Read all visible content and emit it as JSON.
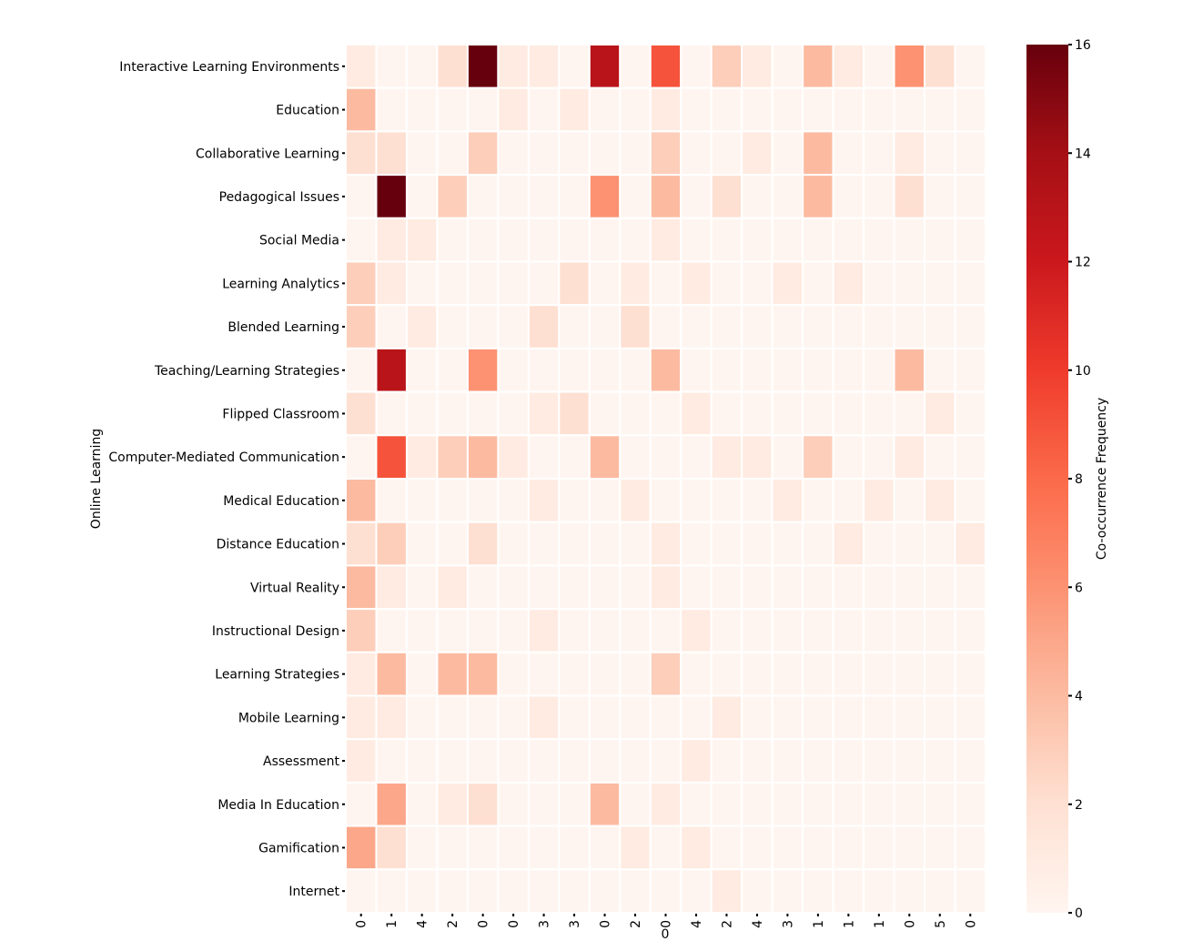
{
  "chart_data": {
    "type": "heatmap",
    "title": "",
    "ylabel": "Online Learning",
    "xlabel": "0",
    "colorbar_label": "Co-occurrence Frequency",
    "colormap": "Reds",
    "vmin": 0,
    "vmax": 16,
    "colorbar_ticks": [
      0,
      2,
      4,
      6,
      8,
      10,
      12,
      14,
      16
    ],
    "x_tick_labels": [
      "0",
      "1",
      "4",
      "2",
      "0",
      "0",
      "3",
      "3",
      "0",
      "2",
      "0",
      "4",
      "2",
      "4",
      "3",
      "1",
      "1",
      "1",
      "0",
      "5",
      "0"
    ],
    "y_tick_labels": [
      "Interactive Learning Environments",
      "Education",
      "Collaborative Learning",
      "Pedagogical Issues",
      "Social Media",
      "Learning Analytics",
      "Blended Learning",
      "Teaching/Learning Strategies",
      "Flipped Classroom",
      "Computer-Mediated Communication",
      "Medical Education",
      "Distance Education",
      "Virtual Reality",
      "Instructional Design",
      "Learning Strategies",
      "Mobile Learning",
      "Assessment",
      "Media In Education",
      "Gamification",
      "Internet"
    ],
    "values": [
      [
        1,
        0,
        0,
        2,
        16,
        1,
        1,
        0,
        13,
        0,
        9,
        0,
        3,
        1,
        0,
        4,
        1,
        0,
        6,
        2,
        0
      ],
      [
        4,
        0,
        0,
        0,
        0,
        1,
        0,
        1,
        0,
        0,
        1,
        0,
        0,
        0,
        0,
        0,
        0,
        0,
        0,
        0,
        0
      ],
      [
        2,
        2,
        0,
        0,
        3,
        0,
        0,
        0,
        0,
        0,
        3,
        0,
        0,
        1,
        0,
        4,
        0,
        0,
        1,
        0,
        0
      ],
      [
        0,
        16,
        0,
        3,
        0,
        0,
        0,
        0,
        6,
        0,
        4,
        0,
        2,
        0,
        0,
        4,
        0,
        0,
        2,
        0,
        0
      ],
      [
        0,
        1,
        1,
        0,
        0,
        0,
        0,
        0,
        0,
        0,
        1,
        0,
        0,
        0,
        0,
        0,
        0,
        0,
        0,
        0,
        0
      ],
      [
        3,
        1,
        0,
        0,
        0,
        0,
        0,
        2,
        0,
        1,
        0,
        1,
        0,
        0,
        1,
        0,
        1,
        0,
        0,
        0,
        0
      ],
      [
        3,
        0,
        1,
        0,
        0,
        0,
        2,
        0,
        0,
        2,
        0,
        0,
        0,
        0,
        0,
        0,
        0,
        0,
        0,
        0,
        0
      ],
      [
        0,
        13,
        0,
        0,
        6,
        0,
        0,
        0,
        0,
        0,
        4,
        0,
        0,
        0,
        0,
        0,
        0,
        0,
        4,
        0,
        0
      ],
      [
        2,
        0,
        0,
        0,
        0,
        0,
        1,
        2,
        0,
        0,
        0,
        1,
        0,
        0,
        0,
        0,
        0,
        0,
        0,
        1,
        0
      ],
      [
        0,
        9,
        1,
        3,
        4,
        1,
        0,
        0,
        4,
        0,
        0,
        0,
        1,
        1,
        0,
        3,
        0,
        0,
        1,
        0,
        0
      ],
      [
        4,
        0,
        0,
        0,
        0,
        0,
        1,
        0,
        0,
        1,
        0,
        0,
        0,
        0,
        1,
        0,
        0,
        1,
        0,
        1,
        0
      ],
      [
        2,
        3,
        0,
        0,
        2,
        0,
        0,
        0,
        0,
        0,
        1,
        0,
        0,
        0,
        0,
        0,
        1,
        0,
        0,
        0,
        1
      ],
      [
        4,
        1,
        0,
        1,
        0,
        0,
        0,
        0,
        0,
        0,
        1,
        0,
        0,
        0,
        0,
        0,
        0,
        0,
        0,
        0,
        0
      ],
      [
        3,
        0,
        0,
        0,
        0,
        0,
        1,
        0,
        0,
        0,
        0,
        1,
        0,
        0,
        0,
        0,
        0,
        0,
        0,
        0,
        0
      ],
      [
        1,
        4,
        0,
        4,
        4,
        0,
        0,
        0,
        0,
        0,
        3,
        0,
        0,
        0,
        0,
        0,
        0,
        0,
        0,
        0,
        0
      ],
      [
        1,
        1,
        0,
        0,
        0,
        0,
        1,
        0,
        0,
        0,
        0,
        0,
        1,
        0,
        0,
        0,
        0,
        0,
        0,
        0,
        0
      ],
      [
        1,
        0,
        0,
        0,
        0,
        0,
        0,
        0,
        0,
        0,
        0,
        1,
        0,
        0,
        0,
        0,
        0,
        0,
        0,
        0,
        0
      ],
      [
        0,
        5,
        0,
        1,
        2,
        0,
        0,
        0,
        4,
        0,
        1,
        0,
        0,
        0,
        0,
        0,
        0,
        0,
        0,
        0,
        0
      ],
      [
        5,
        2,
        0,
        0,
        0,
        0,
        0,
        0,
        0,
        1,
        0,
        1,
        0,
        0,
        0,
        0,
        0,
        0,
        0,
        0,
        0
      ],
      [
        0,
        0,
        0,
        0,
        0,
        0,
        0,
        0,
        0,
        0,
        0,
        0,
        1,
        0,
        0,
        0,
        0,
        0,
        0,
        0,
        0
      ]
    ]
  }
}
